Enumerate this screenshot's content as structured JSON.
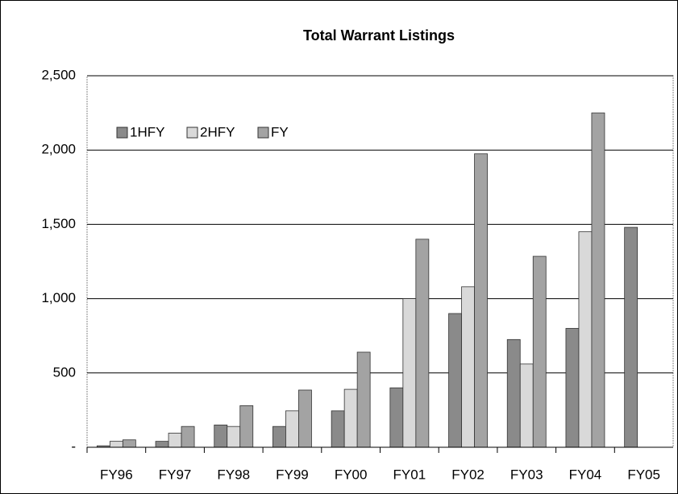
{
  "chart_data": {
    "type": "bar",
    "title": "Total Warrant Listings",
    "categories": [
      "FY96",
      "FY97",
      "FY98",
      "FY99",
      "FY00",
      "FY01",
      "FY02",
      "FY03",
      "FY04",
      "FY05"
    ],
    "series": [
      {
        "name": "1HFY",
        "color": "#8a8a8a",
        "values": [
          10,
          40,
          150,
          140,
          245,
          400,
          900,
          725,
          800,
          1480
        ]
      },
      {
        "name": "2HFY",
        "color": "#d9d9d9",
        "values": [
          40,
          95,
          140,
          245,
          390,
          1000,
          1080,
          560,
          1450,
          null
        ]
      },
      {
        "name": "FY",
        "color": "#a3a3a3",
        "values": [
          50,
          140,
          280,
          385,
          640,
          1400,
          1975,
          1285,
          2250,
          null
        ]
      }
    ],
    "ylim": [
      0,
      2500
    ],
    "yticks": [
      {
        "value": 0,
        "label": "-"
      },
      500,
      {
        "value": 1000,
        "label": "1,000"
      },
      {
        "value": 1500,
        "label": "1,500"
      },
      {
        "value": 2000,
        "label": "2,000"
      },
      {
        "value": 2500,
        "label": "2,500"
      }
    ],
    "grid": true,
    "legend": "top-left"
  }
}
